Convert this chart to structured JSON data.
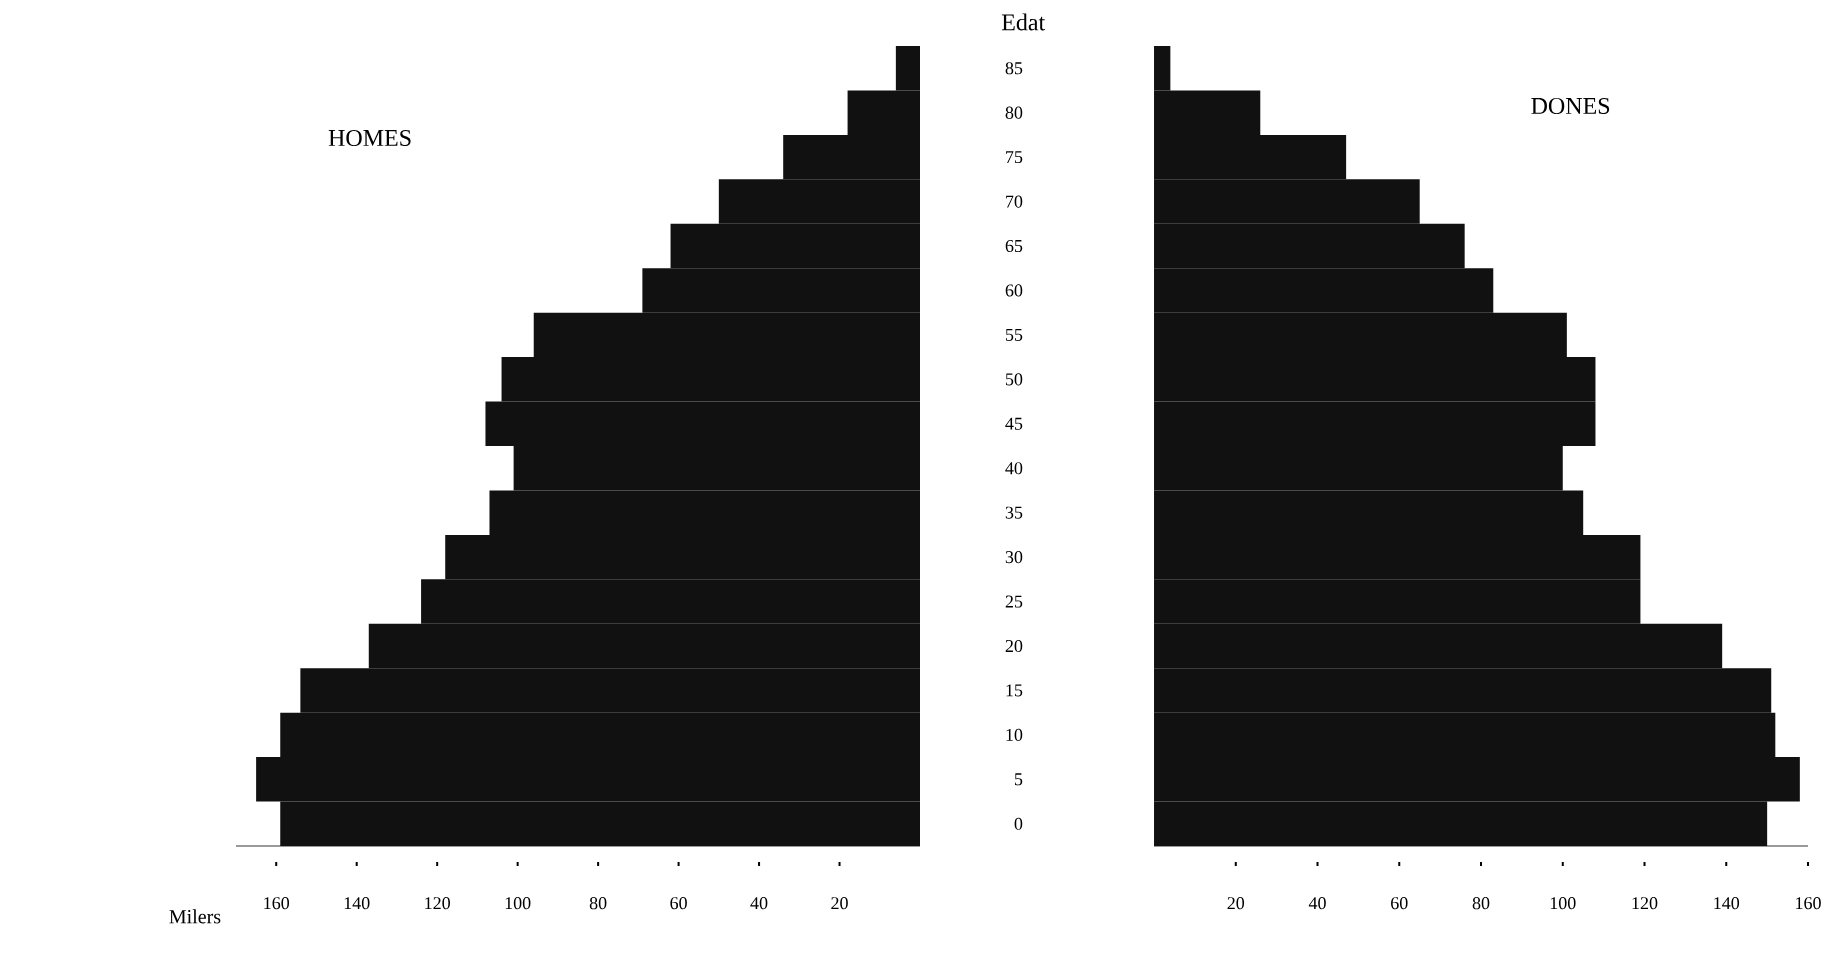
{
  "chart_data": [
    {
      "type": "bar",
      "orientation": "horizontal",
      "title": "HOMES",
      "xlabel": "Milers",
      "color": "#111111",
      "categories": [
        "85",
        "80",
        "75",
        "70",
        "65",
        "60",
        "55",
        "50",
        "45",
        "40",
        "35",
        "30",
        "25",
        "20",
        "15",
        "10",
        "5",
        "0"
      ],
      "values": [
        6,
        18,
        34,
        50,
        62,
        69,
        96,
        104,
        108,
        101,
        107,
        118,
        124,
        137,
        154,
        159,
        165,
        159
      ],
      "xlim": [
        170,
        0
      ],
      "xticks": [
        160,
        140,
        120,
        100,
        80,
        60,
        40,
        20
      ],
      "tick_labels": "x"
    },
    {
      "type": "bar",
      "orientation": "horizontal",
      "title": "DONES",
      "ylabel": "Edat",
      "color": "#111111",
      "categories": [
        "85",
        "80",
        "75",
        "70",
        "65",
        "60",
        "55",
        "50",
        "45",
        "40",
        "35",
        "30",
        "25",
        "20",
        "15",
        "10",
        "5",
        "0"
      ],
      "values": [
        4,
        26,
        47,
        65,
        76,
        83,
        101,
        108,
        108,
        100,
        105,
        119,
        119,
        139,
        151,
        152,
        158,
        150
      ],
      "xlim": [
        0,
        160
      ],
      "xticks": [
        20,
        40,
        60,
        80,
        100,
        120,
        140,
        160
      ]
    }
  ]
}
